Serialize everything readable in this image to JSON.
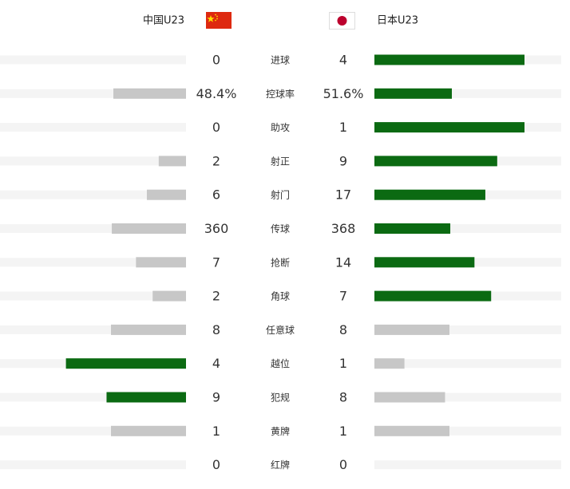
{
  "teams": {
    "home": "中国U23",
    "away": "日本U23"
  },
  "colors": {
    "leading": "#0b6a12",
    "trailing": "#c7c7c7",
    "track": "#f4f4f4"
  },
  "stats": [
    {
      "label": "进球",
      "home": 0,
      "away": 4
    },
    {
      "label": "控球率",
      "home": {
        "value": 48.4,
        "label": "48.4%"
      },
      "away": {
        "value": 51.6,
        "label": "51.6%"
      }
    },
    {
      "label": "助攻",
      "home": 0,
      "away": 1
    },
    {
      "label": "射正",
      "home": 2,
      "away": 9
    },
    {
      "label": "射门",
      "home": 6,
      "away": 17
    },
    {
      "label": "传球",
      "home": 360,
      "away": 368
    },
    {
      "label": "抢断",
      "home": 7,
      "away": 14
    },
    {
      "label": "角球",
      "home": 2,
      "away": 7
    },
    {
      "label": "任意球",
      "home": 8,
      "away": 8
    },
    {
      "label": "越位",
      "home": 4,
      "away": 1
    },
    {
      "label": "犯规",
      "home": 9,
      "away": 8
    },
    {
      "label": "黄牌",
      "home": 1,
      "away": 1
    },
    {
      "label": "红牌",
      "home": 0,
      "away": 0
    }
  ]
}
